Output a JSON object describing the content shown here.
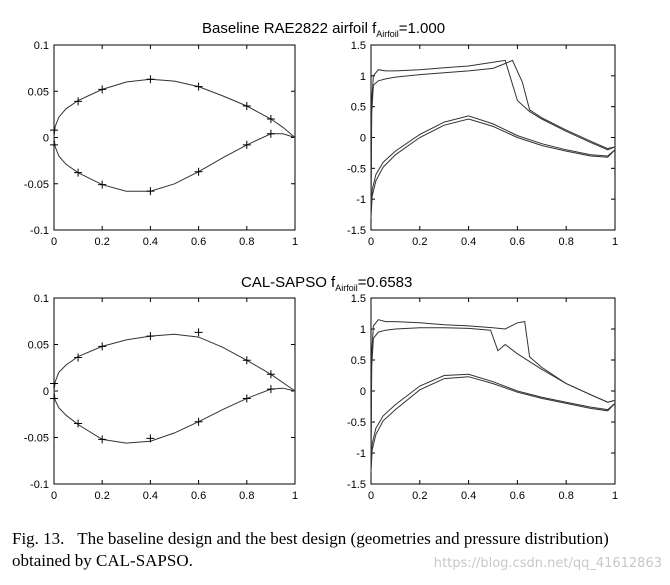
{
  "figure": {
    "row1_title": {
      "main": "Baseline RAE2822 airfoil  f",
      "sub": "Airfoil",
      "tail": "=1.000"
    },
    "row2_title": {
      "main": "CAL-SAPSO f",
      "sub": "Airfoil",
      "tail": "=0.6583"
    },
    "caption": {
      "label": "Fig. 13.",
      "text": "The baseline design and the best design (geometries and pressure distribution) obtained by CAL-SAPSO."
    },
    "watermark": "https://blog.csdn.net/qq_41612863"
  },
  "chart_data": [
    {
      "type": "line",
      "panel": "baseline-geometry",
      "xlim": [
        0,
        1
      ],
      "ylim": [
        -0.1,
        0.1
      ],
      "xticks": [
        "0",
        "0.2",
        "0.4",
        "0.6",
        "0.8",
        "1"
      ],
      "yticks": [
        "0.1",
        "0.05",
        "0",
        "-0.05",
        "-0.1"
      ],
      "series": [
        {
          "values_x": [
            0,
            0.005,
            0.02,
            0.05,
            0.1,
            0.2,
            0.3,
            0.4,
            0.5,
            0.6,
            0.7,
            0.8,
            0.9,
            0.95,
            1.0
          ],
          "values_y": [
            0,
            0.012,
            0.022,
            0.031,
            0.04,
            0.052,
            0.06,
            0.063,
            0.061,
            0.055,
            0.045,
            0.034,
            0.02,
            0.011,
            0
          ]
        },
        {
          "values_x": [
            0,
            0.005,
            0.02,
            0.05,
            0.1,
            0.2,
            0.3,
            0.4,
            0.5,
            0.6,
            0.7,
            0.8,
            0.9,
            0.95,
            1.0
          ],
          "values_y": [
            0,
            -0.01,
            -0.02,
            -0.029,
            -0.038,
            -0.051,
            -0.058,
            -0.058,
            -0.05,
            -0.037,
            -0.022,
            -0.008,
            0.004,
            0.004,
            0
          ]
        }
      ],
      "markers": [
        [
          0,
          0.008
        ],
        [
          0.1,
          0.039
        ],
        [
          0.2,
          0.052
        ],
        [
          0.4,
          0.063
        ],
        [
          0.6,
          0.055
        ],
        [
          0.8,
          0.034
        ],
        [
          0.9,
          0.02
        ],
        [
          0,
          -0.008
        ],
        [
          0.1,
          -0.038
        ],
        [
          0.2,
          -0.051
        ],
        [
          0.4,
          -0.058
        ],
        [
          0.6,
          -0.037
        ],
        [
          0.8,
          -0.008
        ],
        [
          0.9,
          0.004
        ]
      ]
    },
    {
      "type": "line",
      "panel": "baseline-pressure",
      "xlim": [
        0,
        1
      ],
      "ylim": [
        -1.5,
        1.5
      ],
      "xticks": [
        "0",
        "0.2",
        "0.4",
        "0.6",
        "0.8",
        "1"
      ],
      "yticks": [
        "1.5",
        "1",
        "0.5",
        "0",
        "-0.5",
        "-1",
        "-1.5"
      ],
      "series": [
        {
          "values_x": [
            0,
            0.003,
            0.01,
            0.03,
            0.06,
            0.1,
            0.2,
            0.3,
            0.4,
            0.5,
            0.55,
            0.6,
            0.65,
            0.7,
            0.8,
            0.9,
            0.97,
            1.0
          ],
          "values_y": [
            -1.1,
            0.6,
            1.0,
            1.1,
            1.08,
            1.08,
            1.1,
            1.13,
            1.16,
            1.22,
            1.25,
            0.6,
            0.42,
            0.3,
            0.1,
            -0.08,
            -0.2,
            -0.15
          ]
        },
        {
          "values_x": [
            0,
            0.003,
            0.01,
            0.03,
            0.06,
            0.1,
            0.2,
            0.3,
            0.4,
            0.5,
            0.55,
            0.58,
            0.62,
            0.65,
            0.7,
            0.8,
            0.9,
            0.97,
            1.0
          ],
          "values_y": [
            -1.3,
            0.4,
            0.85,
            0.92,
            0.95,
            0.98,
            1.02,
            1.05,
            1.08,
            1.12,
            1.2,
            1.25,
            0.9,
            0.45,
            0.32,
            0.12,
            -0.06,
            -0.18,
            -0.15
          ]
        },
        {
          "values_x": [
            0,
            0.005,
            0.02,
            0.05,
            0.1,
            0.2,
            0.3,
            0.4,
            0.5,
            0.6,
            0.7,
            0.8,
            0.9,
            0.97,
            1.0
          ],
          "values_y": [
            -1.2,
            -0.85,
            -0.6,
            -0.4,
            -0.22,
            0.05,
            0.25,
            0.35,
            0.22,
            0.03,
            -0.1,
            -0.2,
            -0.28,
            -0.3,
            -0.2
          ]
        },
        {
          "values_x": [
            0,
            0.005,
            0.02,
            0.05,
            0.1,
            0.2,
            0.3,
            0.4,
            0.5,
            0.6,
            0.7,
            0.8,
            0.9,
            0.97,
            1.0
          ],
          "values_y": [
            -1.3,
            -0.95,
            -0.7,
            -0.48,
            -0.28,
            0.0,
            0.2,
            0.3,
            0.18,
            0.0,
            -0.13,
            -0.22,
            -0.3,
            -0.32,
            -0.2
          ]
        }
      ]
    },
    {
      "type": "line",
      "panel": "optimized-geometry",
      "xlim": [
        0,
        1
      ],
      "ylim": [
        -0.1,
        0.1
      ],
      "xticks": [
        "0",
        "0.2",
        "0.4",
        "0.6",
        "0.8",
        "1"
      ],
      "yticks": [
        "0.1",
        "0.05",
        "0",
        "-0.05",
        "-0.1"
      ],
      "series": [
        {
          "values_x": [
            0,
            0.005,
            0.02,
            0.05,
            0.1,
            0.2,
            0.3,
            0.4,
            0.5,
            0.6,
            0.7,
            0.8,
            0.9,
            0.95,
            1.0
          ],
          "values_y": [
            0,
            0.01,
            0.02,
            0.028,
            0.037,
            0.048,
            0.055,
            0.059,
            0.061,
            0.058,
            0.047,
            0.033,
            0.018,
            0.009,
            0
          ]
        },
        {
          "values_x": [
            0,
            0.005,
            0.02,
            0.05,
            0.1,
            0.2,
            0.3,
            0.4,
            0.5,
            0.6,
            0.7,
            0.8,
            0.9,
            0.95,
            1.0
          ],
          "values_y": [
            0,
            -0.01,
            -0.018,
            -0.026,
            -0.036,
            -0.052,
            -0.056,
            -0.054,
            -0.045,
            -0.033,
            -0.02,
            -0.008,
            0.002,
            0.003,
            0
          ]
        }
      ],
      "markers": [
        [
          0,
          0.008
        ],
        [
          0.1,
          0.036
        ],
        [
          0.2,
          0.048
        ],
        [
          0.4,
          0.059
        ],
        [
          0.6,
          0.063
        ],
        [
          0.8,
          0.033
        ],
        [
          0.9,
          0.018
        ],
        [
          0,
          -0.008
        ],
        [
          0.1,
          -0.035
        ],
        [
          0.2,
          -0.052
        ],
        [
          0.4,
          -0.051
        ],
        [
          0.6,
          -0.033
        ],
        [
          0.8,
          -0.008
        ],
        [
          0.9,
          0.002
        ]
      ]
    },
    {
      "type": "line",
      "panel": "optimized-pressure",
      "xlim": [
        0,
        1
      ],
      "ylim": [
        -1.5,
        1.5
      ],
      "xticks": [
        "0",
        "0.2",
        "0.4",
        "0.6",
        "0.8",
        "1"
      ],
      "yticks": [
        "1.5",
        "1",
        "0.5",
        "0",
        "-0.5",
        "-1",
        "-1.5"
      ],
      "series": [
        {
          "values_x": [
            0,
            0.003,
            0.01,
            0.03,
            0.06,
            0.1,
            0.2,
            0.3,
            0.4,
            0.5,
            0.55,
            0.6,
            0.63,
            0.65,
            0.7,
            0.8,
            0.9,
            0.97,
            1.0
          ],
          "values_y": [
            -1.1,
            0.6,
            1.05,
            1.15,
            1.12,
            1.12,
            1.1,
            1.07,
            1.05,
            1.02,
            1.0,
            1.1,
            1.12,
            0.55,
            0.38,
            0.12,
            -0.06,
            -0.18,
            -0.15
          ]
        },
        {
          "values_x": [
            0,
            0.003,
            0.01,
            0.03,
            0.06,
            0.1,
            0.2,
            0.3,
            0.4,
            0.49,
            0.52,
            0.55,
            0.6,
            0.7,
            0.8,
            0.9,
            0.97,
            1.0
          ],
          "values_y": [
            -1.3,
            0.4,
            0.85,
            0.95,
            0.98,
            1.0,
            1.02,
            1.02,
            1.01,
            0.98,
            0.65,
            0.75,
            0.6,
            0.35,
            0.12,
            -0.06,
            -0.18,
            -0.15
          ]
        },
        {
          "values_x": [
            0,
            0.005,
            0.02,
            0.05,
            0.1,
            0.2,
            0.3,
            0.4,
            0.5,
            0.6,
            0.7,
            0.8,
            0.9,
            0.97,
            1.0
          ],
          "values_y": [
            -1.2,
            -0.85,
            -0.6,
            -0.4,
            -0.22,
            0.08,
            0.25,
            0.27,
            0.15,
            0.0,
            -0.1,
            -0.18,
            -0.26,
            -0.3,
            -0.2
          ]
        },
        {
          "values_x": [
            0,
            0.005,
            0.02,
            0.05,
            0.1,
            0.2,
            0.3,
            0.4,
            0.5,
            0.6,
            0.7,
            0.8,
            0.9,
            0.97,
            1.0
          ],
          "values_y": [
            -1.3,
            -0.95,
            -0.7,
            -0.48,
            -0.3,
            0.02,
            0.2,
            0.23,
            0.12,
            -0.02,
            -0.12,
            -0.2,
            -0.28,
            -0.32,
            -0.2
          ]
        }
      ]
    }
  ]
}
